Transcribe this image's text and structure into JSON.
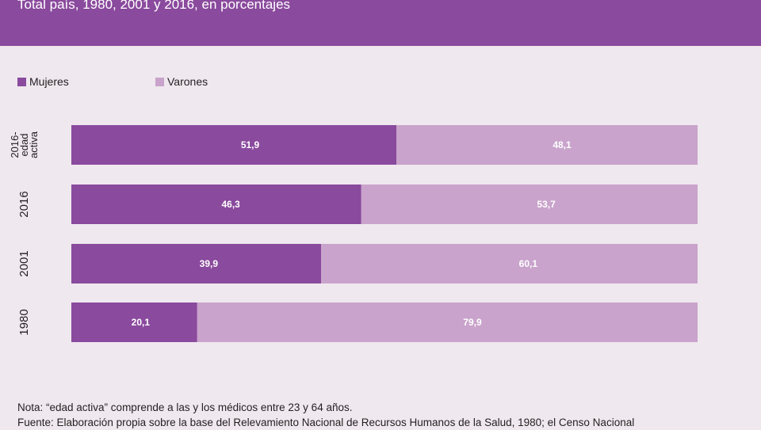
{
  "header": {
    "subtitle": "Total país, 1980, 2001 y 2016, en porcentajes"
  },
  "colors": {
    "header_bg": "#8a4a9d",
    "mujeres": "#8a4a9d",
    "varones": "#c9a3cb",
    "background": "#efe8ef"
  },
  "chart_data": {
    "type": "bar",
    "orientation": "horizontal",
    "stacked": true,
    "categories": [
      "2016-edad activa",
      "2016",
      "2001",
      "1980"
    ],
    "series": [
      {
        "name": "Mujeres",
        "values": [
          51.9,
          46.3,
          39.9,
          20.1
        ],
        "labels": [
          "51,9",
          "46,3",
          "39,9",
          "20,1"
        ]
      },
      {
        "name": "Varones",
        "values": [
          48.1,
          53.7,
          60.1,
          79.9
        ],
        "labels": [
          "48,1",
          "53,7",
          "60,1",
          "79,9"
        ]
      }
    ],
    "category_labels": [
      [
        "2016-",
        "edad",
        "activa"
      ],
      [
        "2016"
      ],
      [
        "2001"
      ],
      [
        "1980"
      ]
    ],
    "xlim": [
      0,
      100
    ],
    "legend_position": "top-left",
    "grid": false
  },
  "notes": {
    "nota": "Nota: “edad activa” comprende a las y los médicos entre 23 y 64 años.",
    "fuente": "Fuente: Elaboración propia sobre la base del Relevamiento Nacional de Recursos Humanos de la Salud, 1980; el Censo Nacional"
  }
}
